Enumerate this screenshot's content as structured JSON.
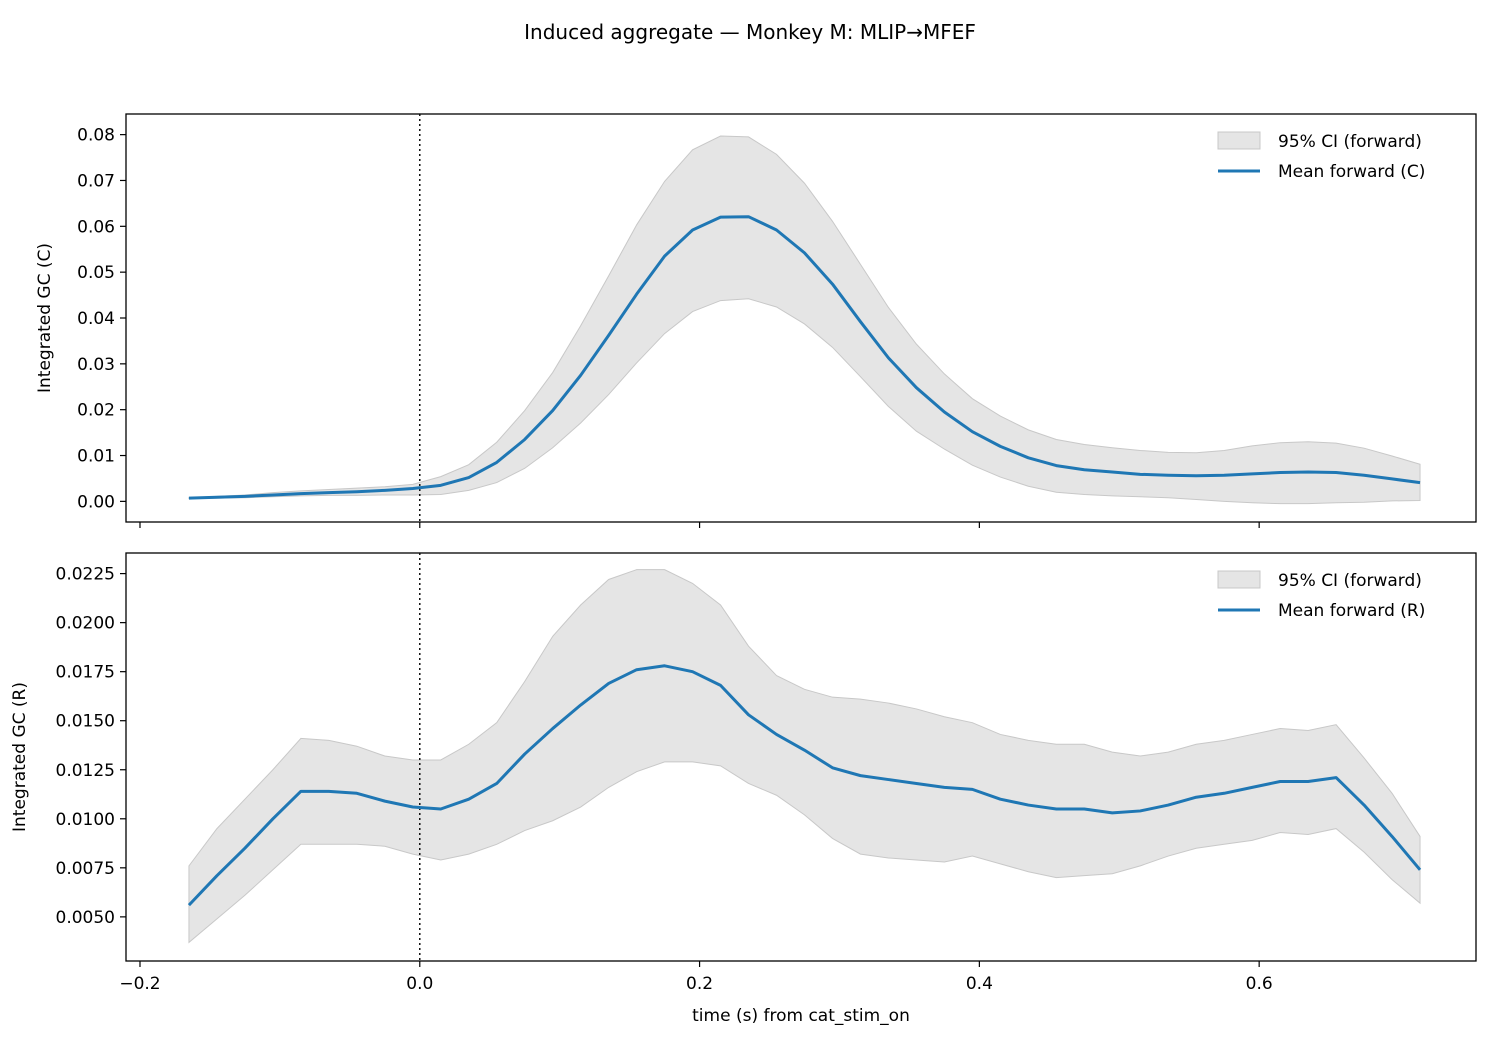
{
  "figure_title": "Induced aggregate — Monkey M: MLIP→MFEF",
  "xlabel": "time (s) from cat_stim_on",
  "colors": {
    "mean": "#1f77b4",
    "ci_fill": "#d3d3d3",
    "ci_edge": "#c8c8c8",
    "vline": "#000000"
  },
  "chart_data": [
    {
      "type": "line",
      "ylabel": "Integrated GC (C)",
      "xlim": [
        -0.21,
        0.755
      ],
      "ylim": [
        -0.0045,
        0.0845
      ],
      "x_ticks": [
        -0.2,
        0.0,
        0.2,
        0.4,
        0.6
      ],
      "x_tick_labels_shown": false,
      "y_ticks": [
        0.0,
        0.01,
        0.02,
        0.03,
        0.04,
        0.05,
        0.06,
        0.07,
        0.08
      ],
      "y_tick_labels": [
        "0.00",
        "0.01",
        "0.02",
        "0.03",
        "0.04",
        "0.05",
        "0.06",
        "0.07",
        "0.08"
      ],
      "vline_x": 0.0,
      "legend_position": "upper right",
      "legend": {
        "ci_label": "95% CI (forward)",
        "mean_label": "Mean forward (C)"
      },
      "x": [
        -0.165,
        -0.145,
        -0.125,
        -0.105,
        -0.085,
        -0.065,
        -0.045,
        -0.025,
        -0.005,
        0.015,
        0.035,
        0.055,
        0.075,
        0.095,
        0.115,
        0.135,
        0.155,
        0.175,
        0.195,
        0.215,
        0.235,
        0.255,
        0.275,
        0.295,
        0.315,
        0.335,
        0.355,
        0.375,
        0.395,
        0.415,
        0.435,
        0.455,
        0.475,
        0.495,
        0.515,
        0.535,
        0.555,
        0.575,
        0.595,
        0.615,
        0.635,
        0.655,
        0.675,
        0.695,
        0.715
      ],
      "series": [
        {
          "name": "Mean forward (C)",
          "values": [
            0.0007,
            0.0009,
            0.0011,
            0.0014,
            0.0017,
            0.0019,
            0.0021,
            0.0024,
            0.0028,
            0.0035,
            0.0052,
            0.0085,
            0.0135,
            0.0198,
            0.0275,
            0.0362,
            0.0452,
            0.0535,
            0.0592,
            0.062,
            0.0621,
            0.0592,
            0.0542,
            0.0474,
            0.0392,
            0.0313,
            0.0248,
            0.0195,
            0.0152,
            0.012,
            0.0095,
            0.0078,
            0.0069,
            0.0064,
            0.0059,
            0.0057,
            0.0056,
            0.0057,
            0.006,
            0.0063,
            0.0064,
            0.0063,
            0.0057,
            0.0049,
            0.0041
          ]
        }
      ],
      "ci_lower": [
        0.0006,
        0.0007,
        0.0008,
        0.001,
        0.0012,
        0.0013,
        0.0013,
        0.0014,
        0.0014,
        0.0015,
        0.0024,
        0.0041,
        0.0072,
        0.0117,
        0.0171,
        0.0233,
        0.0302,
        0.0366,
        0.0414,
        0.0438,
        0.0442,
        0.0424,
        0.0387,
        0.0336,
        0.0272,
        0.0207,
        0.0153,
        0.0114,
        0.0079,
        0.0053,
        0.0033,
        0.002,
        0.0015,
        0.0012,
        0.001,
        0.0008,
        0.0004,
        0.0,
        -0.0003,
        -0.0005,
        -0.0005,
        -0.0003,
        -0.0002,
        0.0001,
        0.0002
      ],
      "ci_upper": [
        0.0008,
        0.0011,
        0.0014,
        0.0019,
        0.0023,
        0.0026,
        0.0029,
        0.0032,
        0.0037,
        0.0054,
        0.008,
        0.0129,
        0.0198,
        0.0281,
        0.0383,
        0.0492,
        0.0603,
        0.0698,
        0.0767,
        0.0797,
        0.0795,
        0.0757,
        0.0694,
        0.0611,
        0.0517,
        0.0423,
        0.0343,
        0.0278,
        0.0224,
        0.0186,
        0.0156,
        0.0135,
        0.0124,
        0.0117,
        0.0111,
        0.0107,
        0.0106,
        0.0111,
        0.0121,
        0.0128,
        0.013,
        0.0127,
        0.0116,
        0.0099,
        0.0081
      ]
    },
    {
      "type": "line",
      "ylabel": "Integrated GC (R)",
      "xlim": [
        -0.21,
        0.755
      ],
      "ylim": [
        0.00275,
        0.02355
      ],
      "x_ticks": [
        -0.2,
        0.0,
        0.2,
        0.4,
        0.6
      ],
      "x_tick_labels": [
        "−0.2",
        "0.0",
        "0.2",
        "0.4",
        "0.6"
      ],
      "y_ticks": [
        0.005,
        0.0075,
        0.01,
        0.0125,
        0.015,
        0.0175,
        0.02,
        0.0225
      ],
      "y_tick_labels": [
        "0.0050",
        "0.0075",
        "0.0100",
        "0.0125",
        "0.0150",
        "0.0175",
        "0.0200",
        "0.0225"
      ],
      "vline_x": 0.0,
      "legend_position": "upper right",
      "legend": {
        "ci_label": "95% CI (forward)",
        "mean_label": "Mean forward (R)"
      },
      "x": [
        -0.165,
        -0.145,
        -0.125,
        -0.105,
        -0.085,
        -0.065,
        -0.045,
        -0.025,
        -0.005,
        0.015,
        0.035,
        0.055,
        0.075,
        0.095,
        0.115,
        0.135,
        0.155,
        0.175,
        0.195,
        0.215,
        0.235,
        0.255,
        0.275,
        0.295,
        0.315,
        0.335,
        0.355,
        0.375,
        0.395,
        0.415,
        0.435,
        0.455,
        0.475,
        0.495,
        0.515,
        0.535,
        0.555,
        0.575,
        0.595,
        0.615,
        0.635,
        0.655,
        0.675,
        0.695,
        0.715
      ],
      "series": [
        {
          "name": "Mean forward (R)",
          "values": [
            0.0056,
            0.0071,
            0.0085,
            0.01,
            0.0114,
            0.0114,
            0.0113,
            0.0109,
            0.0106,
            0.0105,
            0.011,
            0.0118,
            0.0133,
            0.0146,
            0.0158,
            0.0169,
            0.0176,
            0.0178,
            0.0175,
            0.0168,
            0.0153,
            0.0143,
            0.0135,
            0.0126,
            0.0122,
            0.012,
            0.0118,
            0.0116,
            0.0115,
            0.011,
            0.0107,
            0.0105,
            0.0105,
            0.0103,
            0.0104,
            0.0107,
            0.0111,
            0.0113,
            0.0116,
            0.0119,
            0.0119,
            0.0121,
            0.0107,
            0.0091,
            0.0074
          ]
        }
      ],
      "ci_lower": [
        0.0037,
        0.0049,
        0.0061,
        0.0074,
        0.0087,
        0.0087,
        0.0087,
        0.0086,
        0.0082,
        0.0079,
        0.0082,
        0.0087,
        0.0094,
        0.0099,
        0.0106,
        0.0116,
        0.0124,
        0.0129,
        0.0129,
        0.0127,
        0.0118,
        0.0112,
        0.0102,
        0.009,
        0.0082,
        0.008,
        0.0079,
        0.0078,
        0.0081,
        0.0077,
        0.0073,
        0.007,
        0.0071,
        0.0072,
        0.0076,
        0.0081,
        0.0085,
        0.0087,
        0.0089,
        0.0093,
        0.0092,
        0.0095,
        0.0083,
        0.0069,
        0.0057
      ],
      "ci_upper": [
        0.0076,
        0.0095,
        0.011,
        0.0125,
        0.0141,
        0.014,
        0.0137,
        0.0132,
        0.013,
        0.013,
        0.0138,
        0.0149,
        0.017,
        0.0193,
        0.0209,
        0.0222,
        0.0227,
        0.0227,
        0.022,
        0.0209,
        0.0188,
        0.0173,
        0.0166,
        0.0162,
        0.0161,
        0.0159,
        0.0156,
        0.0152,
        0.0149,
        0.0143,
        0.014,
        0.0138,
        0.0138,
        0.0134,
        0.0132,
        0.0134,
        0.0138,
        0.014,
        0.0143,
        0.0146,
        0.0145,
        0.0148,
        0.0131,
        0.0113,
        0.0091
      ]
    }
  ]
}
